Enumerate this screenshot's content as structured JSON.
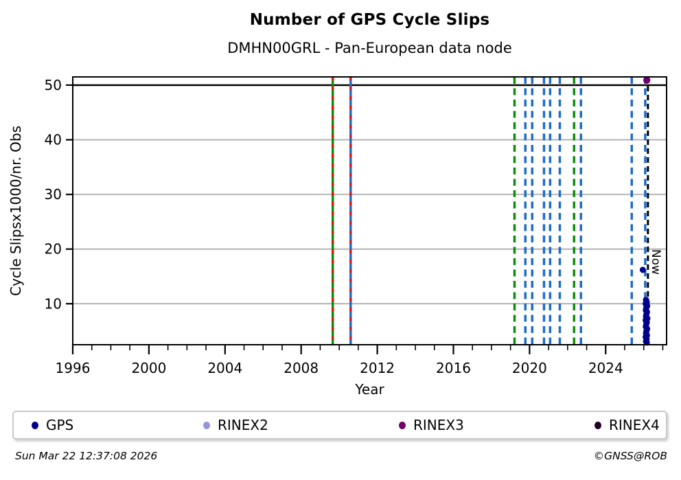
{
  "header": {
    "title": "Number of GPS Cycle Slips",
    "subtitle": "DMHN00GRL - Pan-European data node"
  },
  "chart_data": {
    "type": "scatter",
    "title": "Number of GPS Cycle Slips",
    "subtitle": "DMHN00GRL - Pan-European data node",
    "xlabel": "Year",
    "ylabel": "Cycle Slipsx1000/nr. Obs",
    "xlim": [
      1996,
      2027.2
    ],
    "ylim": [
      2.5,
      51.5
    ],
    "xticks": [
      1996,
      2000,
      2004,
      2008,
      2012,
      2016,
      2020,
      2024
    ],
    "x_minor_step": 1,
    "yticks": [
      10,
      20,
      30,
      40,
      50
    ],
    "grid": "horizontal",
    "grid_color": "#b4b4b4",
    "threshold_line": {
      "y": 50,
      "color": "#000000"
    },
    "event_lines": [
      {
        "year": 2009.66,
        "color": "#0d8c0d",
        "style": "solid_red_dash"
      },
      {
        "year": 2010.6,
        "color": "#1e6cc8",
        "style": "solid_red_dash"
      },
      {
        "year": 2019.21,
        "color": "#0d8c0d",
        "style": "dashed"
      },
      {
        "year": 2019.78,
        "color": "#1e6cc8",
        "style": "dashed"
      },
      {
        "year": 2020.14,
        "color": "#1e6cc8",
        "style": "dashed"
      },
      {
        "year": 2020.76,
        "color": "#1e6cc8",
        "style": "dashed"
      },
      {
        "year": 2021.08,
        "color": "#1e6cc8",
        "style": "dashed"
      },
      {
        "year": 2021.59,
        "color": "#1e6cc8",
        "style": "dashed"
      },
      {
        "year": 2022.34,
        "color": "#0d8c0d",
        "style": "dashed"
      },
      {
        "year": 2022.7,
        "color": "#1e6cc8",
        "style": "dashed"
      },
      {
        "year": 2025.37,
        "color": "#1e6cc8",
        "style": "dashed"
      },
      {
        "year": 2026.08,
        "color": "#1e6cc8",
        "style": "dashed"
      }
    ],
    "now_line": {
      "year": 2026.22,
      "label": "Now",
      "color": "#000000"
    },
    "red_dash_color": "#ee1111",
    "series": [
      {
        "name": "GPS",
        "color": "#00008b",
        "marker_radius": 4.5,
        "points": [
          [
            2025.95,
            16.2
          ],
          [
            2026.12,
            10.7
          ],
          [
            2026.16,
            10.3
          ],
          [
            2026.1,
            10.0
          ],
          [
            2026.18,
            9.6
          ],
          [
            2026.13,
            9.2
          ],
          [
            2026.11,
            8.8
          ],
          [
            2026.17,
            8.5
          ],
          [
            2026.14,
            8.1
          ],
          [
            2026.12,
            7.7
          ],
          [
            2026.19,
            7.3
          ],
          [
            2026.1,
            7.0
          ],
          [
            2026.16,
            6.6
          ],
          [
            2026.13,
            6.2
          ],
          [
            2026.11,
            5.8
          ],
          [
            2026.18,
            5.4
          ],
          [
            2026.14,
            5.0
          ],
          [
            2026.12,
            4.6
          ],
          [
            2026.17,
            4.2
          ],
          [
            2026.1,
            3.9
          ],
          [
            2026.15,
            3.5
          ],
          [
            2026.12,
            3.1
          ],
          [
            2026.16,
            2.9
          ]
        ]
      },
      {
        "name": "RINEX2",
        "color": "#9595d9",
        "marker_radius": 4.5,
        "points": []
      },
      {
        "name": "RINEX3",
        "color": "#70006e",
        "marker_radius": 5.2,
        "points": [
          [
            2026.16,
            50.9
          ]
        ]
      },
      {
        "name": "RINEX4",
        "color": "#250025",
        "marker_radius": 4.5,
        "points": []
      }
    ]
  },
  "legend": {
    "items": [
      {
        "label": "GPS",
        "color": "#00008b"
      },
      {
        "label": "RINEX2",
        "color": "#9595d9"
      },
      {
        "label": "RINEX3",
        "color": "#70006e"
      },
      {
        "label": "RINEX4",
        "color": "#250025"
      }
    ]
  },
  "footer": {
    "timestamp": "Sun Mar 22 12:37:08 2026",
    "credit": "©GNSS@ROB"
  }
}
